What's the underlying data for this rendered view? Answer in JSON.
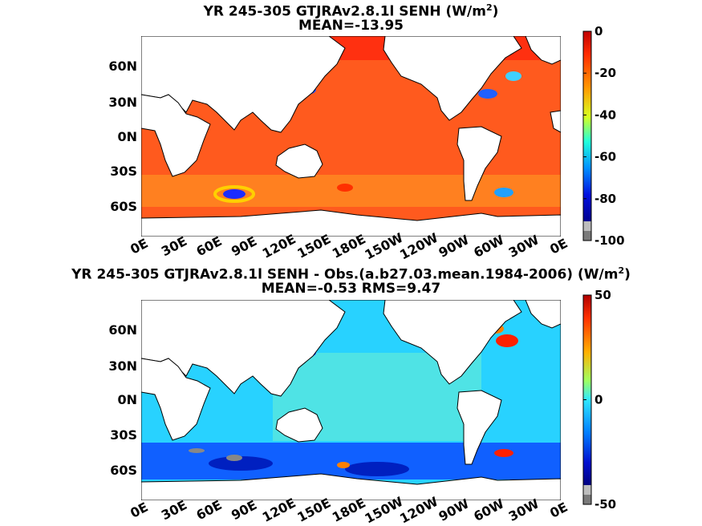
{
  "chart_data": [
    {
      "type": "heatmap",
      "title_line1": "YR 245-305 GTJRAv2.8.1l  SENH (W/m",
      "title_sup": "2",
      "title_line1_end": ")",
      "title_line2": "MEAN=-13.95",
      "x_ticks": [
        "0E",
        "30E",
        "60E",
        "90E",
        "120E",
        "150E",
        "180E",
        "150W",
        "120W",
        "90W",
        "60W",
        "30W",
        "0E"
      ],
      "y_ticks": [
        "60N",
        "30N",
        "0N",
        "30S",
        "60S"
      ],
      "colorbar_ticks": [
        "0",
        "-20",
        "-40",
        "-60",
        "-80",
        "-100"
      ],
      "colorbar_range": [
        -100,
        0
      ],
      "mean": -13.95
    },
    {
      "type": "heatmap",
      "title_line1": "YR 245-305 GTJRAv2.8.1l SENH - Obs.(a.b27.03.mean.1984-2006) (W/m",
      "title_sup": "2",
      "title_line1_end": ")",
      "title_line2": "MEAN=-0.53 RMS=9.47",
      "x_ticks": [
        "0E",
        "30E",
        "60E",
        "90E",
        "120E",
        "150E",
        "180E",
        "150W",
        "120W",
        "90W",
        "60W",
        "30W",
        "0E"
      ],
      "y_ticks": [
        "60N",
        "30N",
        "0N",
        "30S",
        "60S"
      ],
      "colorbar_ticks": [
        "50",
        "0",
        "-50"
      ],
      "colorbar_range": [
        -50,
        50
      ],
      "mean": -0.53,
      "rms": 9.47
    }
  ],
  "colors": {
    "ocean_top": "#ff5a1e",
    "ocean_bottom": "#28d2ff",
    "land": "#ffffff"
  }
}
